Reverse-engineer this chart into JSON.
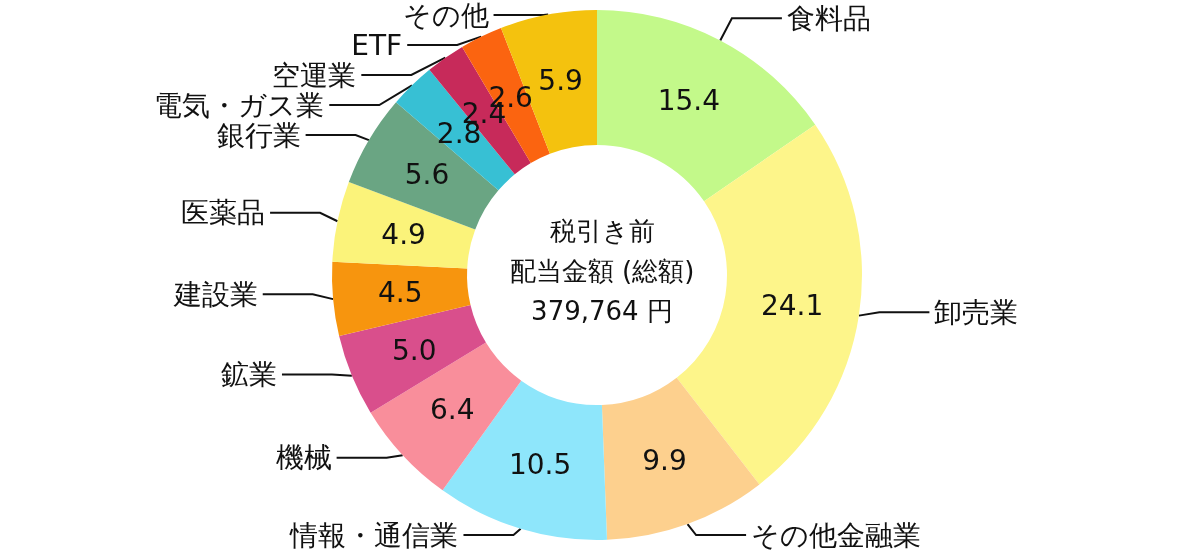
{
  "chart_data": {
    "type": "donut",
    "title": "税引き前",
    "subtitle": "配当金額 (総額)",
    "annotations": [
      "379,764 円"
    ],
    "categories": [
      "食料品",
      "卸売業",
      "その他金融業",
      "情報・通信業",
      "機械",
      "鉱業",
      "建設業",
      "医薬品",
      "銀行業",
      "電気・ガス業",
      "空運業",
      "ETF",
      "その他"
    ],
    "values": [
      15.4,
      24.1,
      9.9,
      10.5,
      6.4,
      5.0,
      4.5,
      4.9,
      5.6,
      2.8,
      2.4,
      2.6,
      5.9
    ],
    "value_labels": [
      "15.4",
      "24.1",
      "9.9",
      "10.5",
      "6.4",
      "5.0",
      "4.5",
      "4.9",
      "5.6",
      "2.8",
      "2.4",
      "2.6",
      "5.9"
    ],
    "colors": [
      "#c3f98a",
      "#fdf58a",
      "#fdd08e",
      "#8ee6fb",
      "#f98e9b",
      "#d94f8c",
      "#f7950e",
      "#fbf37a",
      "#6aa583",
      "#37c0d4",
      "#c72a5a",
      "#fb6410",
      "#f4c20e"
    ],
    "legend": false
  }
}
